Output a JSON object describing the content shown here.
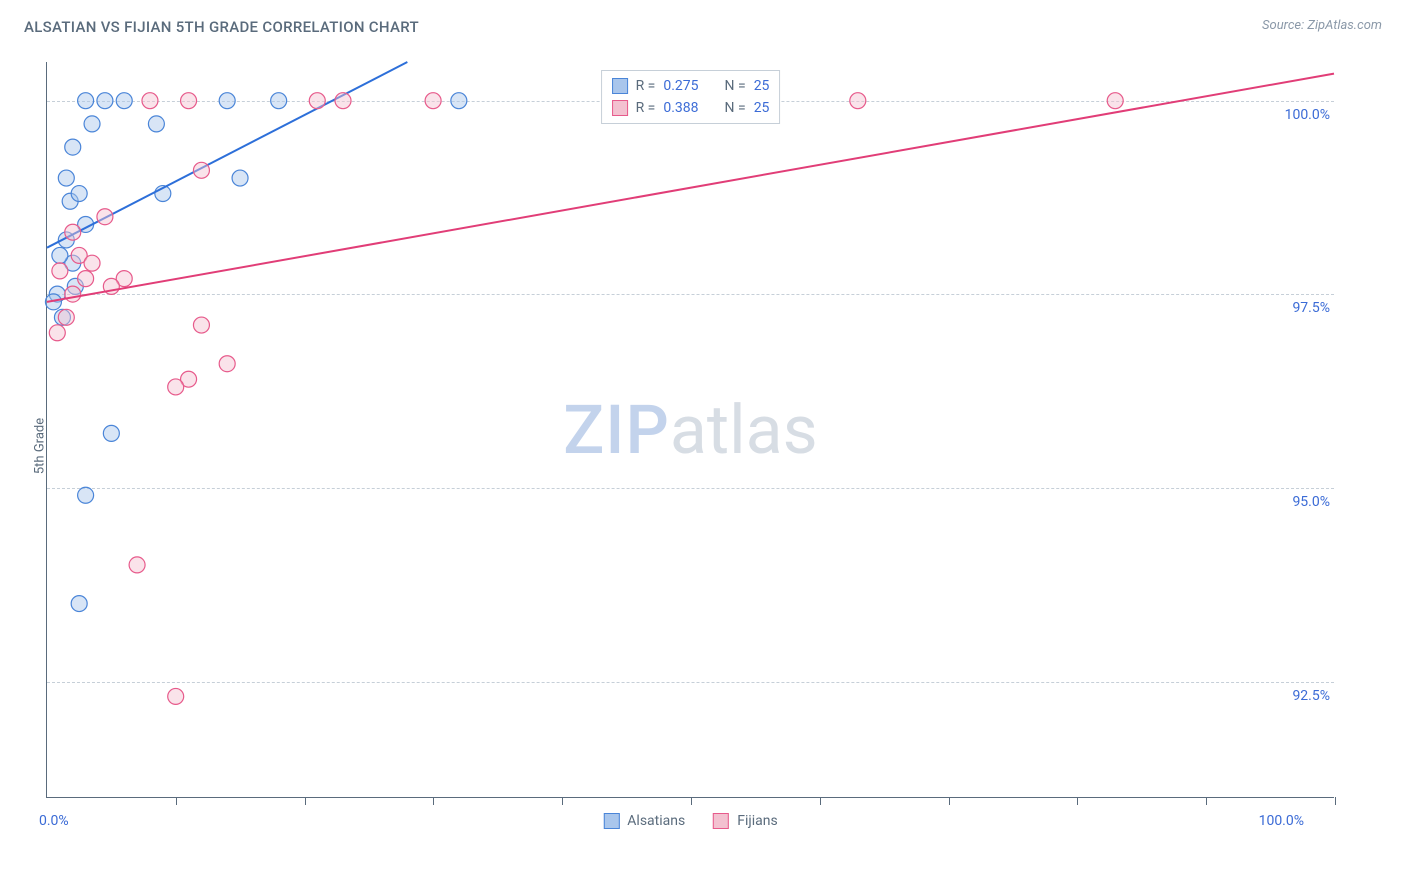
{
  "title": "ALSATIAN VS FIJIAN 5TH GRADE CORRELATION CHART",
  "source": "Source: ZipAtlas.com",
  "ylabel": "5th Grade",
  "watermark_zip": "ZIP",
  "watermark_atlas": "atlas",
  "chart": {
    "type": "scatter",
    "xlim": [
      0,
      100
    ],
    "ylim": [
      91.0,
      100.5
    ],
    "x_ticks": [
      10,
      20,
      30,
      40,
      50,
      60,
      70,
      80,
      90,
      100
    ],
    "y_gridlines": [
      92.5,
      95.0,
      97.5,
      100.0
    ],
    "y_tick_labels": [
      "92.5%",
      "95.0%",
      "97.5%",
      "100.0%"
    ],
    "x_axis_label_left": "0.0%",
    "x_axis_label_right": "100.0%",
    "background_color": "#ffffff",
    "grid_color": "#c6cfd8",
    "axis_color": "#5a6b7c",
    "marker_radius": 8,
    "marker_opacity": 0.45,
    "line_width": 2,
    "series": [
      {
        "name": "Alsatians",
        "color_fill": "#a9c6ec",
        "color_stroke": "#4a85d8",
        "line_color": "#2d6fd9",
        "r_value": "0.275",
        "n_value": "25",
        "trend_line": {
          "x1": 0,
          "y1": 98.1,
          "x2": 28,
          "y2": 100.5
        },
        "points": [
          {
            "x": 3.0,
            "y": 100.0
          },
          {
            "x": 4.5,
            "y": 100.0
          },
          {
            "x": 6,
            "y": 100.0
          },
          {
            "x": 3.5,
            "y": 99.7
          },
          {
            "x": 14,
            "y": 100.0
          },
          {
            "x": 18,
            "y": 100.0
          },
          {
            "x": 32,
            "y": 100.0
          },
          {
            "x": 2.0,
            "y": 99.4
          },
          {
            "x": 8.5,
            "y": 99.7
          },
          {
            "x": 15,
            "y": 99.0
          },
          {
            "x": 1.8,
            "y": 98.7
          },
          {
            "x": 1.5,
            "y": 98.2
          },
          {
            "x": 2.0,
            "y": 97.9
          },
          {
            "x": 0.8,
            "y": 97.5
          },
          {
            "x": 2.2,
            "y": 97.6
          },
          {
            "x": 0.5,
            "y": 97.4
          },
          {
            "x": 5,
            "y": 95.7
          },
          {
            "x": 3.0,
            "y": 94.9
          },
          {
            "x": 2.5,
            "y": 93.5
          },
          {
            "x": 9,
            "y": 98.8
          },
          {
            "x": 3.0,
            "y": 98.4
          },
          {
            "x": 1.5,
            "y": 99.0
          },
          {
            "x": 2.5,
            "y": 98.8
          },
          {
            "x": 1.0,
            "y": 98.0
          },
          {
            "x": 1.2,
            "y": 97.2
          }
        ]
      },
      {
        "name": "Fijians",
        "color_fill": "#f3c1d0",
        "color_stroke": "#e75a8b",
        "line_color": "#e13d77",
        "r_value": "0.388",
        "n_value": "25",
        "trend_line": {
          "x1": 0,
          "y1": 97.4,
          "x2": 100,
          "y2": 100.35
        },
        "points": [
          {
            "x": 8,
            "y": 100.0
          },
          {
            "x": 11,
            "y": 100.0
          },
          {
            "x": 21,
            "y": 100.0
          },
          {
            "x": 63,
            "y": 100.0
          },
          {
            "x": 83,
            "y": 100.0
          },
          {
            "x": 12,
            "y": 99.1
          },
          {
            "x": 4.5,
            "y": 98.5
          },
          {
            "x": 2.5,
            "y": 98.0
          },
          {
            "x": 3.0,
            "y": 97.7
          },
          {
            "x": 6,
            "y": 97.7
          },
          {
            "x": 1.5,
            "y": 97.2
          },
          {
            "x": 2.0,
            "y": 97.5
          },
          {
            "x": 12,
            "y": 97.1
          },
          {
            "x": 11,
            "y": 96.4
          },
          {
            "x": 10,
            "y": 96.3
          },
          {
            "x": 14,
            "y": 96.6
          },
          {
            "x": 7,
            "y": 94.0
          },
          {
            "x": 10,
            "y": 92.3
          },
          {
            "x": 3.5,
            "y": 97.9
          },
          {
            "x": 5.0,
            "y": 97.6
          },
          {
            "x": 1.0,
            "y": 97.8
          },
          {
            "x": 23,
            "y": 100.0
          },
          {
            "x": 2.0,
            "y": 98.3
          },
          {
            "x": 0.8,
            "y": 97.0
          },
          {
            "x": 30,
            "y": 100.0
          }
        ]
      }
    ]
  },
  "stats_box": {
    "rows": [
      {
        "r_label": "R =",
        "n_label": "N ="
      },
      {
        "r_label": "R =",
        "n_label": "N ="
      }
    ]
  },
  "bottom_legend": {
    "items": [
      {
        "label": "Alsatians"
      },
      {
        "label": "Fijians"
      }
    ]
  }
}
